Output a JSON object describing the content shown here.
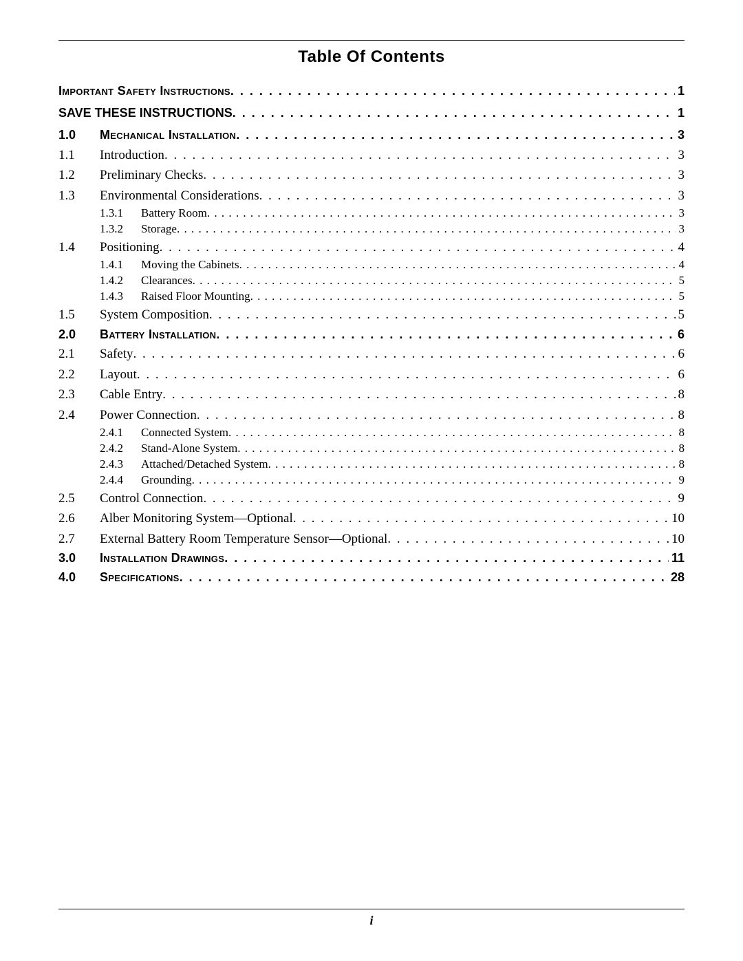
{
  "title": "Table Of Contents",
  "footer_page": "i",
  "entries": [
    {
      "type": "top-bold",
      "num": "",
      "label": "Important Safety Instructions",
      "page": "1"
    },
    {
      "type": "top-bold-nosc",
      "num": "",
      "label": "SAVE THESE INSTRUCTIONS",
      "page": "1"
    },
    {
      "type": "section",
      "num": "1.0",
      "label": "Mechanical Installation",
      "page": "3"
    },
    {
      "type": "l1",
      "num": "1.1",
      "label": "Introduction",
      "page": "3"
    },
    {
      "type": "l1",
      "num": "1.2",
      "label": "Preliminary Checks",
      "page": "3"
    },
    {
      "type": "l1",
      "num": "1.3",
      "label": "Environmental Considerations",
      "page": "3"
    },
    {
      "type": "l2",
      "num": "1.3.1",
      "label": "Battery Room",
      "page": "3"
    },
    {
      "type": "l2",
      "num": "1.3.2",
      "label": "Storage",
      "page": "3"
    },
    {
      "type": "l1",
      "num": "1.4",
      "label": "Positioning",
      "page": "4"
    },
    {
      "type": "l2",
      "num": "1.4.1",
      "label": "Moving the Cabinets",
      "page": "4"
    },
    {
      "type": "l2",
      "num": "1.4.2",
      "label": "Clearances",
      "page": "5"
    },
    {
      "type": "l2",
      "num": "1.4.3",
      "label": "Raised Floor Mounting",
      "page": "5"
    },
    {
      "type": "l1",
      "num": "1.5",
      "label": "System Composition",
      "page": "5"
    },
    {
      "type": "section",
      "num": "2.0",
      "label": "Battery Installation",
      "page": "6"
    },
    {
      "type": "l1",
      "num": "2.1",
      "label": "Safety",
      "page": "6"
    },
    {
      "type": "l1",
      "num": "2.2",
      "label": "Layout",
      "page": "6"
    },
    {
      "type": "l1",
      "num": "2.3",
      "label": "Cable Entry",
      "page": "8"
    },
    {
      "type": "l1",
      "num": "2.4",
      "label": "Power Connection",
      "page": "8"
    },
    {
      "type": "l2",
      "num": "2.4.1",
      "label": "Connected System",
      "page": "8"
    },
    {
      "type": "l2",
      "num": "2.4.2",
      "label": "Stand-Alone System",
      "page": "8"
    },
    {
      "type": "l2",
      "num": "2.4.3",
      "label": "Attached/Detached System",
      "page": "8"
    },
    {
      "type": "l2",
      "num": "2.4.4",
      "label": "Grounding",
      "page": "9"
    },
    {
      "type": "l1",
      "num": "2.5",
      "label": "Control Connection",
      "page": "9"
    },
    {
      "type": "l1",
      "num": "2.6",
      "label": "Alber Monitoring System—Optional",
      "page": "10"
    },
    {
      "type": "l1",
      "num": "2.7",
      "label": "External Battery Room Temperature Sensor—Optional",
      "page": "10"
    },
    {
      "type": "section",
      "num": "3.0",
      "label": "Installation Drawings",
      "page": "11"
    },
    {
      "type": "section",
      "num": "4.0",
      "label": "Specifications",
      "page": "28"
    }
  ]
}
